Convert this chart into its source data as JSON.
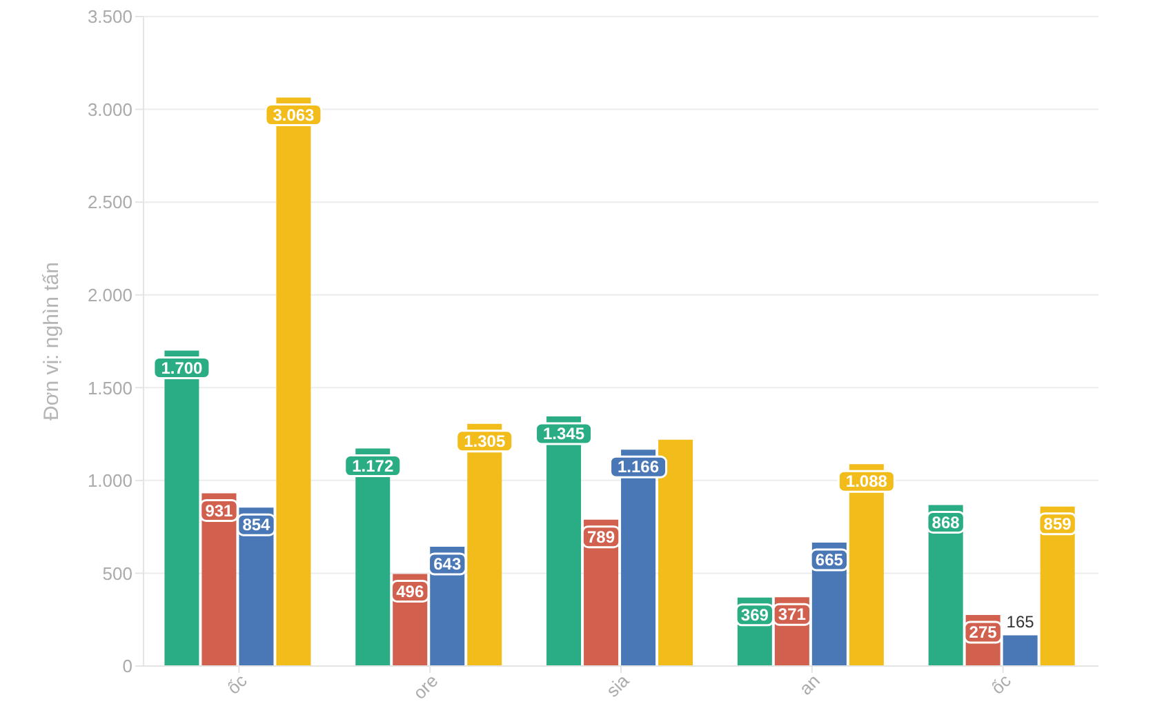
{
  "chart_data": {
    "type": "bar",
    "ylabel": "Đơn vị: nghìn tấn",
    "categories": [
      "ốc",
      "ore",
      "sia",
      "an",
      "ốc"
    ],
    "series": [
      {
        "color": "#2aad84",
        "values": [
          1700,
          1172,
          1345,
          369,
          868
        ],
        "value_labels": [
          "1.700",
          "1.172",
          "1.345",
          "369",
          "868"
        ]
      },
      {
        "color": "#d2604e",
        "values": [
          931,
          496,
          789,
          371,
          275
        ],
        "value_labels": [
          "931",
          "496",
          "789",
          "371",
          "275"
        ]
      },
      {
        "color": "#4a78b6",
        "values": [
          854,
          643,
          1166,
          665,
          165
        ],
        "value_labels": [
          "854",
          "643",
          "1.166",
          "665",
          "165"
        ]
      },
      {
        "color": "#f2bc1b",
        "values": [
          3063,
          1305,
          1220,
          1088,
          859
        ],
        "value_labels": [
          "3.063",
          "1.305",
          null,
          "1.088",
          "859"
        ]
      }
    ],
    "ylim": [
      0,
      3500
    ],
    "yticks": [
      0,
      500,
      {
        "value": 1000,
        "label": "1.000"
      },
      {
        "value": 1500,
        "label": "1.500"
      },
      {
        "value": 2000,
        "label": "2.000"
      },
      {
        "value": 2500,
        "label": "2.500"
      },
      {
        "value": 3000,
        "label": "3.000"
      },
      {
        "value": 3500,
        "label": "3.500"
      }
    ],
    "grid": "y"
  }
}
